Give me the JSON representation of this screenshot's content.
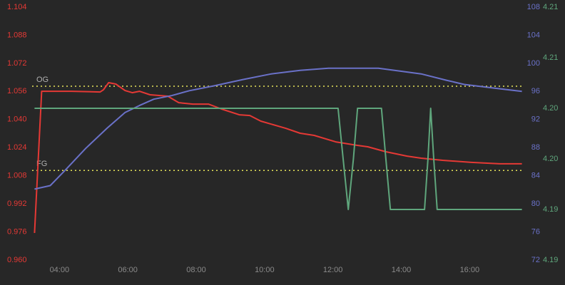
{
  "chart_data": {
    "type": "line",
    "xlim": [
      3.2,
      17.6
    ],
    "xticks": [
      {
        "value": 4,
        "label": "04:00"
      },
      {
        "value": 6,
        "label": "06:00"
      },
      {
        "value": 8,
        "label": "08:00"
      },
      {
        "value": 10,
        "label": "10:00"
      },
      {
        "value": 12,
        "label": "12:00"
      },
      {
        "value": 14,
        "label": "14:00"
      },
      {
        "value": 16,
        "label": "16:00"
      }
    ],
    "ylim": [
      0.96,
      1.104
    ],
    "yticks": [
      {
        "value": 0.96,
        "label": "0.960"
      },
      {
        "value": 0.976,
        "label": "0.976"
      },
      {
        "value": 0.992,
        "label": "0.992"
      },
      {
        "value": 1.008,
        "label": "1.008"
      },
      {
        "value": 1.024,
        "label": "1.024"
      },
      {
        "value": 1.04,
        "label": "1.040"
      },
      {
        "value": 1.056,
        "label": "1.056"
      },
      {
        "value": 1.072,
        "label": "1.072"
      },
      {
        "value": 1.088,
        "label": "1.088"
      },
      {
        "value": 1.104,
        "label": "1.104"
      }
    ],
    "y2lim": [
      72,
      108
    ],
    "y2ticks": [
      72,
      76,
      80,
      84,
      88,
      92,
      96,
      100,
      104,
      108
    ],
    "y3lim": [
      4.19,
      4.21
    ],
    "y3ticks": [
      {
        "value": 4.19,
        "label": "4.19"
      },
      {
        "value": 4.194,
        "label": "4.19"
      },
      {
        "value": 4.198,
        "label": "4.20"
      },
      {
        "value": 4.202,
        "label": "4.20"
      },
      {
        "value": 4.206,
        "label": "4.21"
      },
      {
        "value": 4.21,
        "label": "4.21"
      }
    ],
    "y_color": "#e53935",
    "y2_color": "#6a71c8",
    "y3_color": "#5fa67c",
    "reference_lines": [
      {
        "label": "OG",
        "value": 1.059,
        "color": "#e6e35a"
      },
      {
        "label": "FG",
        "value": 1.011,
        "color": "#e6e35a"
      }
    ],
    "series": [
      {
        "axis": "y",
        "color": "#e53935",
        "x": [
          3.27,
          3.48,
          4.35,
          5.19,
          5.29,
          5.44,
          5.65,
          5.92,
          6.13,
          6.34,
          6.65,
          7.17,
          7.49,
          7.9,
          8.36,
          8.74,
          9.26,
          9.57,
          9.89,
          10.62,
          11.04,
          11.45,
          12.08,
          12.71,
          13.02,
          13.54,
          14.17,
          14.58,
          15.21,
          16.05,
          16.88,
          17.53
        ],
        "values": [
          0.9754,
          1.0561,
          1.0561,
          1.0557,
          1.057,
          1.061,
          1.0602,
          1.0565,
          1.0553,
          1.0561,
          1.0541,
          1.0533,
          1.0496,
          1.0488,
          1.0488,
          1.046,
          1.0427,
          1.0423,
          1.0391,
          1.035,
          1.0322,
          1.031,
          1.0273,
          1.0253,
          1.0245,
          1.0217,
          1.0192,
          1.018,
          1.0168,
          1.0156,
          1.0148,
          1.0148
        ]
      },
      {
        "axis": "y2",
        "color": "#6a71c8",
        "x": [
          3.27,
          3.73,
          4.15,
          4.77,
          5.4,
          5.92,
          6.34,
          6.76,
          7.28,
          7.8,
          8.53,
          9.37,
          10.2,
          11.04,
          11.87,
          13.33,
          13.96,
          14.58,
          15.32,
          15.84,
          16.67,
          17.53
        ],
        "values": [
          82.1,
          82.6,
          84.7,
          87.9,
          90.8,
          93.0,
          94.0,
          94.9,
          95.4,
          96.1,
          96.8,
          97.7,
          98.5,
          99.0,
          99.3,
          99.3,
          98.9,
          98.5,
          97.6,
          97.0,
          96.5,
          96.0
        ]
      },
      {
        "axis": "y3",
        "color": "#5fa67c",
        "x": [
          3.27,
          12.15,
          12.3,
          12.45,
          12.6,
          12.72,
          13.42,
          13.55,
          13.68,
          14.68,
          14.78,
          14.86,
          14.95,
          15.05,
          17.53
        ],
        "values": [
          4.202,
          4.202,
          4.198,
          4.194,
          4.198,
          4.202,
          4.202,
          4.198,
          4.194,
          4.194,
          4.198,
          4.202,
          4.198,
          4.194,
          4.194
        ]
      }
    ]
  }
}
